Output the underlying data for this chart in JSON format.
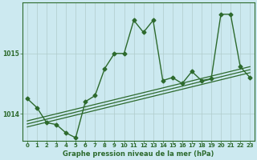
{
  "title": "Graphe pression niveau de la mer (hPa)",
  "bg_color": "#cce9f0",
  "line_color": "#2d6a2d",
  "grid_color": "#b0cccc",
  "ylim": [
    1013.55,
    1015.85
  ],
  "xlim": [
    -0.5,
    23.5
  ],
  "yticks": [
    1014,
    1015
  ],
  "xticks": [
    0,
    1,
    2,
    3,
    4,
    5,
    6,
    7,
    8,
    9,
    10,
    11,
    12,
    13,
    14,
    15,
    16,
    17,
    18,
    19,
    20,
    21,
    22,
    23
  ],
  "main_x": [
    0,
    1,
    2,
    3,
    4,
    5,
    6,
    7,
    8,
    9,
    10,
    11,
    12,
    13,
    14,
    15,
    16,
    17,
    18,
    19,
    20,
    21,
    22,
    23
  ],
  "main_y": [
    1014.25,
    1014.1,
    1013.85,
    1013.82,
    1013.68,
    1013.6,
    1014.2,
    1014.3,
    1014.75,
    1015.0,
    1015.0,
    1015.55,
    1015.35,
    1015.55,
    1014.55,
    1014.6,
    1014.5,
    1014.7,
    1014.55,
    1014.58,
    1015.65,
    1015.65,
    1014.78,
    1014.6
  ],
  "trend1_x": [
    0,
    23
  ],
  "trend1_y": [
    1013.78,
    1014.68
  ],
  "trend2_x": [
    0,
    23
  ],
  "trend2_y": [
    1013.83,
    1014.73
  ],
  "trend3_x": [
    0,
    23
  ],
  "trend3_y": [
    1013.88,
    1014.78
  ],
  "figwidth": 3.2,
  "figheight": 2.0,
  "dpi": 100
}
